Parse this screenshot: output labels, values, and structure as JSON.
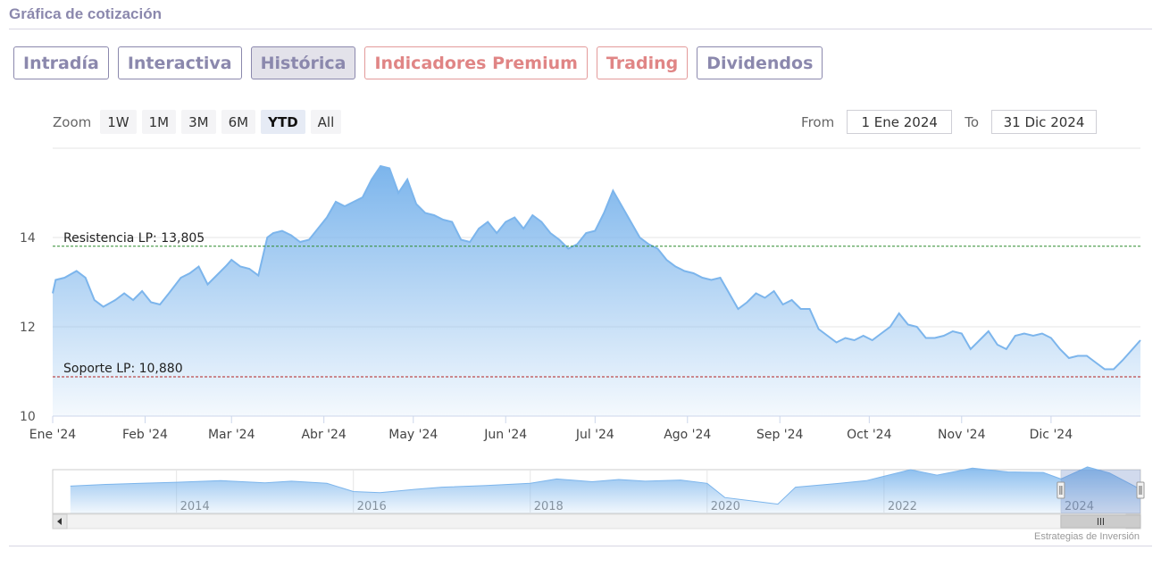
{
  "header": {
    "title": "Gráfica de cotización"
  },
  "tabs": [
    {
      "label": "Intradía",
      "state": "normal"
    },
    {
      "label": "Interactiva",
      "state": "normal"
    },
    {
      "label": "Histórica",
      "state": "active"
    },
    {
      "label": "Indicadores Premium",
      "state": "premium"
    },
    {
      "label": "Trading",
      "state": "premium"
    },
    {
      "label": "Dividendos",
      "state": "normal"
    }
  ],
  "zoom": {
    "label": "Zoom",
    "buttons": [
      "1W",
      "1M",
      "3M",
      "6M",
      "YTD",
      "All"
    ],
    "active": "YTD"
  },
  "range": {
    "from_label": "From",
    "from_value": "1 Ene 2024",
    "to_label": "To",
    "to_value": "31 Dic 2024"
  },
  "credits": "Estrategias de Inversión",
  "colors": {
    "series_line": "#7cb5ec",
    "resistance": "#2e8b2e",
    "support": "#b22222",
    "accent": "#8b88ad",
    "premium": "#e08585"
  },
  "chart_data": {
    "type": "area",
    "title": "",
    "xlabel": "",
    "ylabel": "",
    "ylim": [
      10,
      16
    ],
    "yticks": [
      10,
      12,
      14
    ],
    "grid": true,
    "x_range": [
      "2024-01-01",
      "2024-12-31"
    ],
    "x_ticks": [
      {
        "label": "Ene '24",
        "date": "2024-01-01"
      },
      {
        "label": "Feb '24",
        "date": "2024-02-01"
      },
      {
        "label": "Mar '24",
        "date": "2024-03-01"
      },
      {
        "label": "Abr '24",
        "date": "2024-04-01"
      },
      {
        "label": "May '24",
        "date": "2024-05-01"
      },
      {
        "label": "Jun '24",
        "date": "2024-06-01"
      },
      {
        "label": "Jul '24",
        "date": "2024-07-01"
      },
      {
        "label": "Ago '24",
        "date": "2024-08-01"
      },
      {
        "label": "Sep '24",
        "date": "2024-09-01"
      },
      {
        "label": "Oct '24",
        "date": "2024-10-01"
      },
      {
        "label": "Nov '24",
        "date": "2024-11-01"
      },
      {
        "label": "Dic '24",
        "date": "2024-12-01"
      }
    ],
    "reference_lines": [
      {
        "label": "Resistencia LP: 13,805",
        "value": 13.805,
        "style": "dashed",
        "color": "#2e8b2e"
      },
      {
        "label": "Soporte LP: 10,880",
        "value": 10.88,
        "style": "dashed",
        "color": "#b22222"
      }
    ],
    "series": [
      {
        "points": [
          [
            "2024-01-01",
            12.75
          ],
          [
            "2024-01-02",
            13.05
          ],
          [
            "2024-01-05",
            13.1
          ],
          [
            "2024-01-09",
            13.25
          ],
          [
            "2024-01-12",
            13.1
          ],
          [
            "2024-01-15",
            12.6
          ],
          [
            "2024-01-18",
            12.45
          ],
          [
            "2024-01-22",
            12.6
          ],
          [
            "2024-01-25",
            12.75
          ],
          [
            "2024-01-28",
            12.6
          ],
          [
            "2024-01-31",
            12.8
          ],
          [
            "2024-02-03",
            12.55
          ],
          [
            "2024-02-06",
            12.5
          ],
          [
            "2024-02-09",
            12.75
          ],
          [
            "2024-02-13",
            13.1
          ],
          [
            "2024-02-16",
            13.2
          ],
          [
            "2024-02-19",
            13.35
          ],
          [
            "2024-02-22",
            12.95
          ],
          [
            "2024-02-25",
            13.15
          ],
          [
            "2024-02-28",
            13.35
          ],
          [
            "2024-03-01",
            13.5
          ],
          [
            "2024-03-04",
            13.35
          ],
          [
            "2024-03-07",
            13.3
          ],
          [
            "2024-03-10",
            13.15
          ],
          [
            "2024-03-13",
            14.0
          ],
          [
            "2024-03-15",
            14.1
          ],
          [
            "2024-03-18",
            14.15
          ],
          [
            "2024-03-21",
            14.05
          ],
          [
            "2024-03-24",
            13.9
          ],
          [
            "2024-03-27",
            13.95
          ],
          [
            "2024-03-30",
            14.2
          ],
          [
            "2024-04-02",
            14.45
          ],
          [
            "2024-04-05",
            14.8
          ],
          [
            "2024-04-08",
            14.7
          ],
          [
            "2024-04-11",
            14.8
          ],
          [
            "2024-04-14",
            14.9
          ],
          [
            "2024-04-17",
            15.3
          ],
          [
            "2024-04-20",
            15.6
          ],
          [
            "2024-04-23",
            15.55
          ],
          [
            "2024-04-26",
            15.0
          ],
          [
            "2024-04-29",
            15.3
          ],
          [
            "2024-05-02",
            14.75
          ],
          [
            "2024-05-05",
            14.55
          ],
          [
            "2024-05-08",
            14.5
          ],
          [
            "2024-05-11",
            14.4
          ],
          [
            "2024-05-14",
            14.35
          ],
          [
            "2024-05-17",
            13.95
          ],
          [
            "2024-05-20",
            13.9
          ],
          [
            "2024-05-23",
            14.2
          ],
          [
            "2024-05-26",
            14.35
          ],
          [
            "2024-05-29",
            14.1
          ],
          [
            "2024-06-01",
            14.35
          ],
          [
            "2024-06-04",
            14.45
          ],
          [
            "2024-06-07",
            14.2
          ],
          [
            "2024-06-10",
            14.5
          ],
          [
            "2024-06-13",
            14.35
          ],
          [
            "2024-06-16",
            14.1
          ],
          [
            "2024-06-19",
            13.95
          ],
          [
            "2024-06-22",
            13.75
          ],
          [
            "2024-06-25",
            13.85
          ],
          [
            "2024-06-28",
            14.1
          ],
          [
            "2024-07-01",
            14.15
          ],
          [
            "2024-07-04",
            14.55
          ],
          [
            "2024-07-07",
            15.05
          ],
          [
            "2024-07-10",
            14.7
          ],
          [
            "2024-07-13",
            14.35
          ],
          [
            "2024-07-16",
            14.0
          ],
          [
            "2024-07-19",
            13.85
          ],
          [
            "2024-07-22",
            13.75
          ],
          [
            "2024-07-25",
            13.5
          ],
          [
            "2024-07-28",
            13.35
          ],
          [
            "2024-07-31",
            13.25
          ],
          [
            "2024-08-03",
            13.2
          ],
          [
            "2024-08-06",
            13.1
          ],
          [
            "2024-08-09",
            13.05
          ],
          [
            "2024-08-12",
            13.1
          ],
          [
            "2024-08-15",
            12.75
          ],
          [
            "2024-08-18",
            12.4
          ],
          [
            "2024-08-21",
            12.55
          ],
          [
            "2024-08-24",
            12.75
          ],
          [
            "2024-08-27",
            12.65
          ],
          [
            "2024-08-30",
            12.8
          ],
          [
            "2024-09-02",
            12.5
          ],
          [
            "2024-09-05",
            12.6
          ],
          [
            "2024-09-08",
            12.4
          ],
          [
            "2024-09-11",
            12.4
          ],
          [
            "2024-09-14",
            11.95
          ],
          [
            "2024-09-17",
            11.8
          ],
          [
            "2024-09-20",
            11.65
          ],
          [
            "2024-09-23",
            11.75
          ],
          [
            "2024-09-26",
            11.7
          ],
          [
            "2024-09-29",
            11.8
          ],
          [
            "2024-10-02",
            11.7
          ],
          [
            "2024-10-05",
            11.85
          ],
          [
            "2024-10-08",
            12.0
          ],
          [
            "2024-10-11",
            12.3
          ],
          [
            "2024-10-14",
            12.05
          ],
          [
            "2024-10-17",
            12.0
          ],
          [
            "2024-10-20",
            11.75
          ],
          [
            "2024-10-23",
            11.75
          ],
          [
            "2024-10-26",
            11.8
          ],
          [
            "2024-10-29",
            11.9
          ],
          [
            "2024-11-01",
            11.85
          ],
          [
            "2024-11-04",
            11.5
          ],
          [
            "2024-11-07",
            11.7
          ],
          [
            "2024-11-10",
            11.9
          ],
          [
            "2024-11-13",
            11.6
          ],
          [
            "2024-11-16",
            11.5
          ],
          [
            "2024-11-19",
            11.8
          ],
          [
            "2024-11-22",
            11.85
          ],
          [
            "2024-11-25",
            11.8
          ],
          [
            "2024-11-28",
            11.85
          ],
          [
            "2024-12-01",
            11.75
          ],
          [
            "2024-12-04",
            11.5
          ],
          [
            "2024-12-07",
            11.3
          ],
          [
            "2024-12-10",
            11.35
          ],
          [
            "2024-12-13",
            11.35
          ],
          [
            "2024-12-16",
            11.2
          ],
          [
            "2024-12-19",
            11.05
          ],
          [
            "2024-12-22",
            11.05
          ],
          [
            "2024-12-25",
            11.25
          ],
          [
            "2024-12-31",
            11.7
          ]
        ]
      }
    ],
    "navigator": {
      "x_ticks": [
        "2014",
        "2016",
        "2018",
        "2020",
        "2022",
        "2024"
      ],
      "x_range": [
        2012.6,
        2024.9
      ],
      "selected_range": [
        2024.0,
        2024.9
      ],
      "ylim": [
        8,
        16
      ],
      "points": [
        [
          2012.8,
          13.0
        ],
        [
          2013.2,
          13.3
        ],
        [
          2013.6,
          13.5
        ],
        [
          2014.0,
          13.7
        ],
        [
          2014.5,
          14.0
        ],
        [
          2015.0,
          13.6
        ],
        [
          2015.3,
          13.9
        ],
        [
          2015.7,
          13.5
        ],
        [
          2016.0,
          12.0
        ],
        [
          2016.3,
          11.8
        ],
        [
          2016.7,
          12.4
        ],
        [
          2017.0,
          12.8
        ],
        [
          2017.5,
          13.1
        ],
        [
          2018.0,
          13.5
        ],
        [
          2018.3,
          14.3
        ],
        [
          2018.7,
          13.8
        ],
        [
          2019.0,
          14.2
        ],
        [
          2019.3,
          13.9
        ],
        [
          2019.7,
          14.1
        ],
        [
          2020.0,
          13.5
        ],
        [
          2020.2,
          10.9
        ],
        [
          2020.5,
          10.3
        ],
        [
          2020.8,
          9.7
        ],
        [
          2021.0,
          12.8
        ],
        [
          2021.5,
          13.5
        ],
        [
          2021.8,
          14.0
        ],
        [
          2022.0,
          14.8
        ],
        [
          2022.3,
          16.0
        ],
        [
          2022.6,
          15.0
        ],
        [
          2023.0,
          16.3
        ],
        [
          2023.4,
          15.6
        ],
        [
          2023.8,
          15.5
        ],
        [
          2024.0,
          14.3
        ],
        [
          2024.3,
          16.5
        ],
        [
          2024.55,
          15.4
        ],
        [
          2024.9,
          12.4
        ]
      ]
    }
  }
}
